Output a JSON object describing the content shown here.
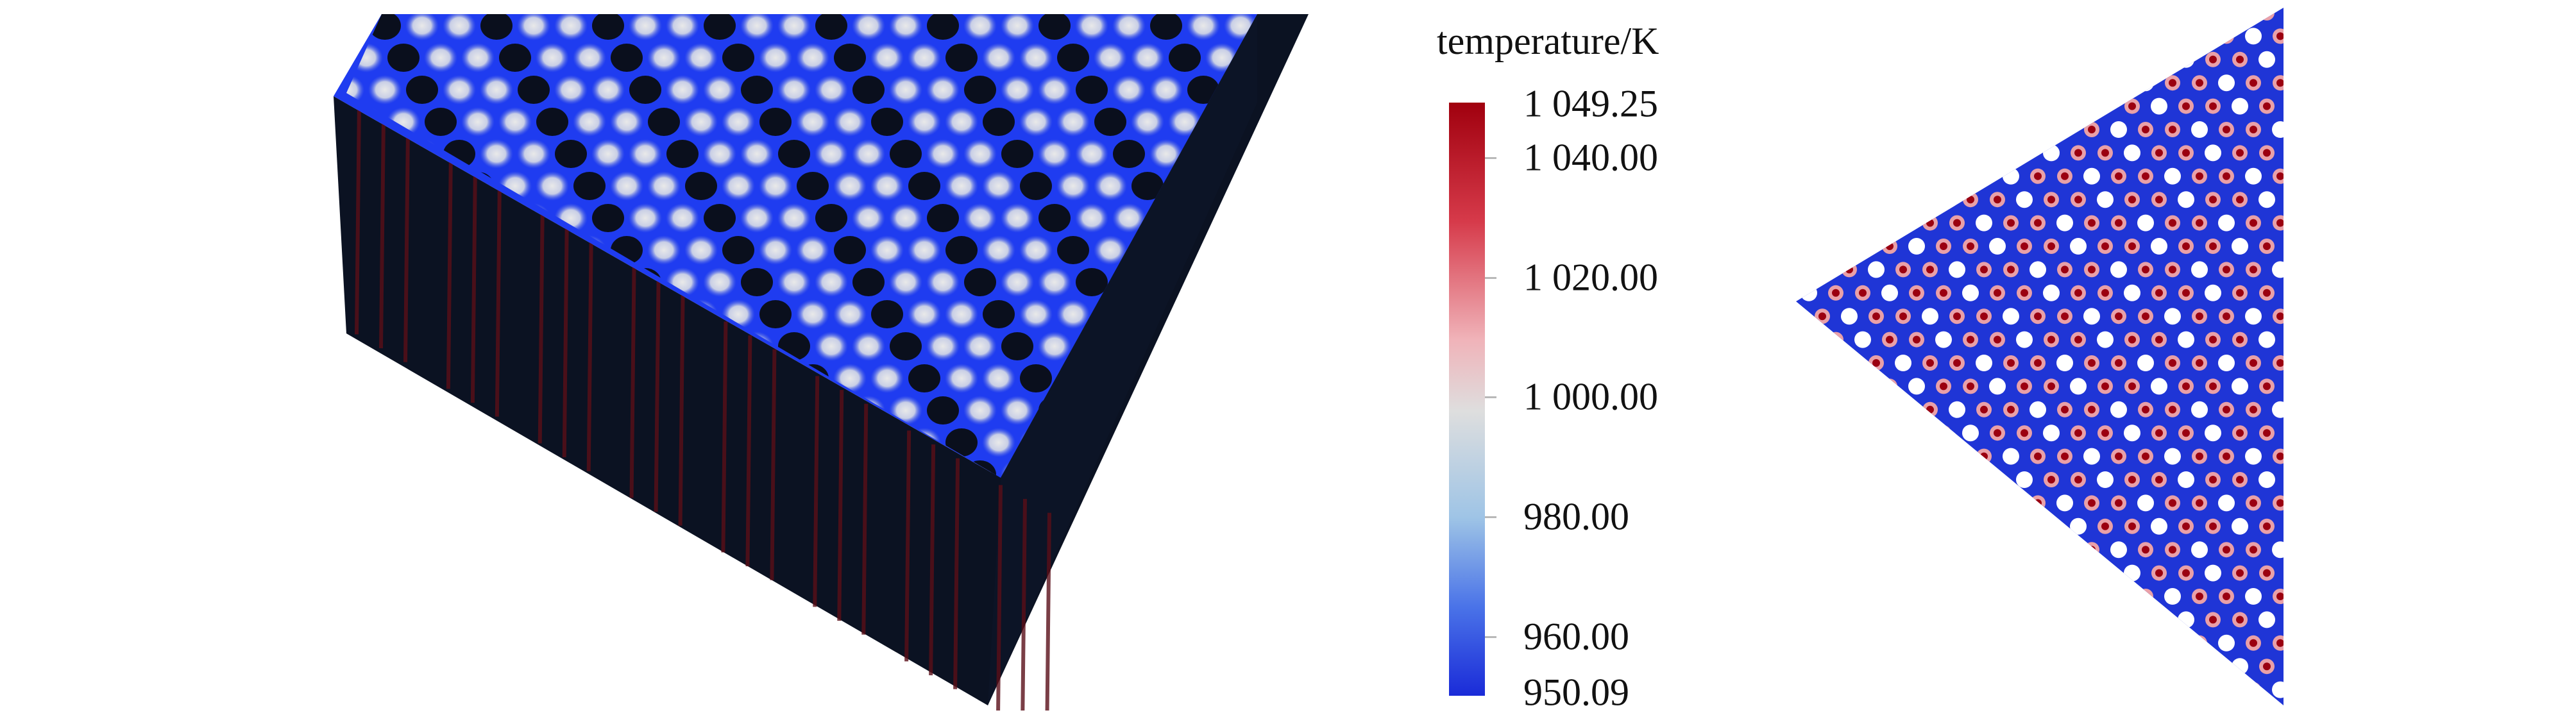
{
  "legend": {
    "title": "temperature/K",
    "max_label": "1 049.25",
    "min_label": "950.09",
    "ticks": [
      {
        "label": "1 040.00",
        "value": 1040.0
      },
      {
        "label": "1 020.00",
        "value": 1020.0
      },
      {
        "label": "1 000.00",
        "value": 1000.0
      },
      {
        "label": "980.00",
        "value": 980.0
      },
      {
        "label": "960.00",
        "value": 960.0
      }
    ],
    "range": [
      950.09,
      1049.25
    ],
    "colors": {
      "low": "#1a2bd8",
      "mid": "#dedede",
      "high": "#a0000e"
    }
  },
  "colors": {
    "block_side": "#0b1222",
    "block_top_bg": "#1f3cf0",
    "hole": "#0a0f1d",
    "pin": "#d6d6d6",
    "tri_bg": "#1f35d6",
    "tri_hole": "#ffffff",
    "tri_hot": "#9b0010",
    "tri_warm": "#e9a0a8"
  }
}
